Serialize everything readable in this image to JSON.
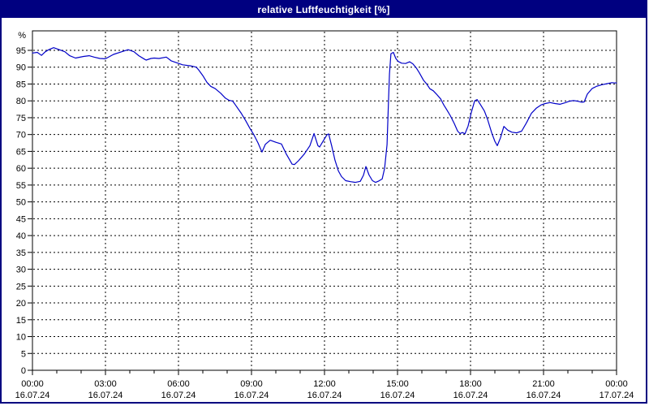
{
  "window": {
    "title": "relative Luftfeuchtigkeit [%]"
  },
  "colors": {
    "title_bar_bg": "#000080",
    "title_text": "#ffffff",
    "window_border": "#000080",
    "plot_bg": "#ffffff",
    "frame": "#000000",
    "grid": "#000000",
    "label_text": "#000000",
    "line": "#0000c8"
  },
  "chart_data": {
    "type": "line",
    "title": "relative Luftfeuchtigkeit [%]",
    "ylabel": "%",
    "xlabel": "",
    "ylim": [
      0,
      100
    ],
    "grid": "dashed",
    "legend_position": "none",
    "y_tick_values": [
      0,
      5,
      10,
      15,
      20,
      25,
      30,
      35,
      40,
      45,
      50,
      55,
      60,
      65,
      70,
      75,
      80,
      85,
      90,
      95
    ],
    "x_axis": {
      "unit": "hours",
      "range_hours": [
        0,
        24
      ],
      "major_tick_hours": 3,
      "minor_tick_hours": 1,
      "tick_labels": [
        {
          "time": "00:00",
          "date": "16.07.24"
        },
        {
          "time": "03:00",
          "date": "16.07.24"
        },
        {
          "time": "06:00",
          "date": "16.07.24"
        },
        {
          "time": "09:00",
          "date": "16.07.24"
        },
        {
          "time": "12:00",
          "date": "16.07.24"
        },
        {
          "time": "15:00",
          "date": "16.07.24"
        },
        {
          "time": "18:00",
          "date": "16.07.24"
        },
        {
          "time": "21:00",
          "date": "16.07.24"
        },
        {
          "time": "00:00",
          "date": "17.07.24"
        }
      ]
    },
    "series": [
      {
        "name": "relative Luftfeuchtigkeit [%]",
        "color": "#0000c8",
        "points_hour_value": [
          [
            0.0,
            94.2
          ],
          [
            0.2,
            94.4
          ],
          [
            0.37,
            93.5
          ],
          [
            0.53,
            94.6
          ],
          [
            0.67,
            95.2
          ],
          [
            0.87,
            95.8
          ],
          [
            1.1,
            95.2
          ],
          [
            1.33,
            94.6
          ],
          [
            1.53,
            93.4
          ],
          [
            1.77,
            92.7
          ],
          [
            2.1,
            93.2
          ],
          [
            2.33,
            93.4
          ],
          [
            2.53,
            93.0
          ],
          [
            2.77,
            92.6
          ],
          [
            3.0,
            92.5
          ],
          [
            3.33,
            93.8
          ],
          [
            3.67,
            94.6
          ],
          [
            3.93,
            95.2
          ],
          [
            4.17,
            94.6
          ],
          [
            4.37,
            93.4
          ],
          [
            4.6,
            92.4
          ],
          [
            4.67,
            92.1
          ],
          [
            4.87,
            92.6
          ],
          [
            5.0,
            92.7
          ],
          [
            5.2,
            92.6
          ],
          [
            5.5,
            93.0
          ],
          [
            5.7,
            91.9
          ],
          [
            5.93,
            91.3
          ],
          [
            6.17,
            90.7
          ],
          [
            6.5,
            90.4
          ],
          [
            6.73,
            90.0
          ],
          [
            6.83,
            89.2
          ],
          [
            7.0,
            87.5
          ],
          [
            7.17,
            85.5
          ],
          [
            7.33,
            84.3
          ],
          [
            7.5,
            83.7
          ],
          [
            7.73,
            82.3
          ],
          [
            7.93,
            80.8
          ],
          [
            8.07,
            80.2
          ],
          [
            8.23,
            79.9
          ],
          [
            8.33,
            78.9
          ],
          [
            8.57,
            76.4
          ],
          [
            8.77,
            74.0
          ],
          [
            8.93,
            71.9
          ],
          [
            9.1,
            69.9
          ],
          [
            9.27,
            67.5
          ],
          [
            9.43,
            64.8
          ],
          [
            9.57,
            67.1
          ],
          [
            9.77,
            68.3
          ],
          [
            10.0,
            67.7
          ],
          [
            10.23,
            67.2
          ],
          [
            10.43,
            64.2
          ],
          [
            10.67,
            61.2
          ],
          [
            10.77,
            61.1
          ],
          [
            10.93,
            62.2
          ],
          [
            11.17,
            64.2
          ],
          [
            11.4,
            66.7
          ],
          [
            11.57,
            70.3
          ],
          [
            11.73,
            66.7
          ],
          [
            11.8,
            66.3
          ],
          [
            11.93,
            67.9
          ],
          [
            12.1,
            69.9
          ],
          [
            12.17,
            70.2
          ],
          [
            12.3,
            66.5
          ],
          [
            12.43,
            62.4
          ],
          [
            12.57,
            59.2
          ],
          [
            12.7,
            57.5
          ],
          [
            12.87,
            56.3
          ],
          [
            13.07,
            56.0
          ],
          [
            13.27,
            55.8
          ],
          [
            13.47,
            56.1
          ],
          [
            13.6,
            57.9
          ],
          [
            13.7,
            60.5
          ],
          [
            13.83,
            58.0
          ],
          [
            13.97,
            56.3
          ],
          [
            14.1,
            55.8
          ],
          [
            14.23,
            56.2
          ],
          [
            14.37,
            56.8
          ],
          [
            14.47,
            60.0
          ],
          [
            14.57,
            67.0
          ],
          [
            14.63,
            80.0
          ],
          [
            14.67,
            88.0
          ],
          [
            14.73,
            94.0
          ],
          [
            14.83,
            94.4
          ],
          [
            14.93,
            92.6
          ],
          [
            15.03,
            91.7
          ],
          [
            15.17,
            91.2
          ],
          [
            15.33,
            91.1
          ],
          [
            15.5,
            91.6
          ],
          [
            15.63,
            91.0
          ],
          [
            15.77,
            89.8
          ],
          [
            15.9,
            88.3
          ],
          [
            16.07,
            86.1
          ],
          [
            16.2,
            85.0
          ],
          [
            16.33,
            83.6
          ],
          [
            16.47,
            83.0
          ],
          [
            16.6,
            82.0
          ],
          [
            16.77,
            80.6
          ],
          [
            16.9,
            78.8
          ],
          [
            17.03,
            77.3
          ],
          [
            17.17,
            75.6
          ],
          [
            17.33,
            73.3
          ],
          [
            17.47,
            71.0
          ],
          [
            17.57,
            70.3
          ],
          [
            17.67,
            70.6
          ],
          [
            17.77,
            70.2
          ],
          [
            17.9,
            72.5
          ],
          [
            18.03,
            76.5
          ],
          [
            18.17,
            80.0
          ],
          [
            18.27,
            80.4
          ],
          [
            18.4,
            79.0
          ],
          [
            18.57,
            77.0
          ],
          [
            18.7,
            74.5
          ],
          [
            18.87,
            70.5
          ],
          [
            19.0,
            68.0
          ],
          [
            19.1,
            66.7
          ],
          [
            19.23,
            69.0
          ],
          [
            19.37,
            72.4
          ],
          [
            19.53,
            71.3
          ],
          [
            19.7,
            70.7
          ],
          [
            19.9,
            70.5
          ],
          [
            20.1,
            71.0
          ],
          [
            20.3,
            73.5
          ],
          [
            20.5,
            76.3
          ],
          [
            20.7,
            77.8
          ],
          [
            20.9,
            78.8
          ],
          [
            21.07,
            79.2
          ],
          [
            21.27,
            79.5
          ],
          [
            21.47,
            79.2
          ],
          [
            21.67,
            79.0
          ],
          [
            21.87,
            79.4
          ],
          [
            22.07,
            79.9
          ],
          [
            22.23,
            80.1
          ],
          [
            22.4,
            79.9
          ],
          [
            22.57,
            79.6
          ],
          [
            22.67,
            79.7
          ],
          [
            22.8,
            82.0
          ],
          [
            23.0,
            83.7
          ],
          [
            23.2,
            84.4
          ],
          [
            23.4,
            84.8
          ],
          [
            23.6,
            85.1
          ],
          [
            23.8,
            85.4
          ],
          [
            24.0,
            85.3
          ]
        ]
      }
    ]
  }
}
